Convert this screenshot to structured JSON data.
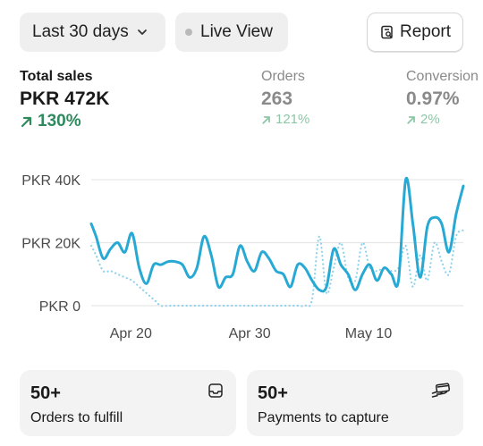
{
  "toolbar": {
    "range_label": "Last 30 days",
    "live_label": "Live View",
    "report_label": "Report"
  },
  "metrics": {
    "sales": {
      "label": "Total sales",
      "value": "PKR 472K",
      "delta": "130%"
    },
    "orders": {
      "label": "Orders",
      "value": "263",
      "delta": "121%"
    },
    "conversion": {
      "label": "Conversion",
      "value": "0.97%",
      "delta": "2%"
    }
  },
  "icons": {
    "range": "chevron-down-icon",
    "live": "dot-icon",
    "report": "report-icon",
    "trend": "arrow-up-right-icon",
    "fulfill": "inbox-icon",
    "capture": "payment-hand-icon"
  },
  "colors": {
    "accent_line": "#27a9d4",
    "comparison_line": "#8fd2ec",
    "delta_green": "#2f8a5e"
  },
  "chart_data": {
    "type": "line",
    "title": "",
    "xlabel": "",
    "ylabel": "",
    "y_tick_labels": [
      "PKR 0",
      "PKR 20K",
      "PKR 40K"
    ],
    "y_ticks": [
      0,
      20000,
      40000
    ],
    "ylim": [
      0,
      42000
    ],
    "x_tick_labels": [
      "Apr 20",
      "Apr 30",
      "May 10"
    ],
    "x_tick_positions": [
      3.3,
      13.2,
      23.1
    ],
    "x": [
      0,
      0.4,
      1,
      1.6,
      2.2,
      2.8,
      3.4,
      4,
      4.6,
      5.2,
      5.8,
      6.4,
      7,
      7.6,
      8.2,
      8.8,
      9.4,
      10,
      10.6,
      11.2,
      11.8,
      12.4,
      13,
      13.6,
      14.2,
      14.8,
      15.4,
      16,
      16.6,
      17.2,
      17.8,
      18.4,
      19,
      19.6,
      20.2,
      20.8,
      21.4,
      22,
      22.6,
      23.2,
      23.8,
      24.4,
      25,
      25.6,
      26.2,
      26.8,
      27.4,
      28,
      28.6,
      29.2,
      29.8,
      30.4,
      31
    ],
    "series": [
      {
        "values": [
          26000,
          22000,
          15000,
          18000,
          20000,
          17000,
          23000,
          12000,
          7000,
          13000,
          13000,
          14000,
          14000,
          13000,
          9000,
          12000,
          22000,
          16000,
          6000,
          9000,
          10000,
          19000,
          14000,
          11000,
          17000,
          15000,
          11000,
          10000,
          6000,
          13000,
          12000,
          8000,
          5000,
          6000,
          18000,
          13000,
          10000,
          5000,
          10000,
          13000,
          8000,
          12000,
          10000,
          8000,
          40000,
          26000,
          9000,
          25000,
          28000,
          26000,
          17000,
          29000,
          38000
        ]
      },
      {
        "style": "dotted",
        "values": [
          19000,
          16000,
          11000,
          11000,
          10000,
          9000,
          8000,
          6000,
          4000,
          2000,
          0,
          0,
          0,
          0,
          0,
          0,
          0,
          0,
          0,
          0,
          0,
          0,
          0,
          0,
          0,
          0,
          0,
          0,
          0,
          0,
          0,
          2000,
          22000,
          4000,
          12000,
          20000,
          9000,
          8000,
          20000,
          12000,
          11000,
          12000,
          11000,
          12000,
          19000,
          6000,
          16000,
          8000,
          20000,
          14000,
          10000,
          22000,
          24000
        ]
      }
    ]
  },
  "cards": {
    "fulfill": {
      "count": "50+",
      "label": "Orders to fulfill"
    },
    "capture": {
      "count": "50+",
      "label": "Payments to capture"
    }
  }
}
